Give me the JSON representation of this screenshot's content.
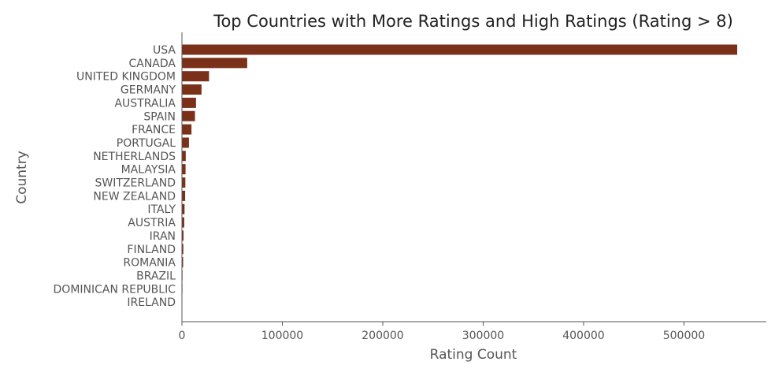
{
  "chart_data": {
    "type": "bar",
    "orientation": "horizontal",
    "title": "Top Countries with More Ratings and High Ratings (Rating > 8)",
    "xlabel": "Rating Count",
    "ylabel": "Country",
    "categories": [
      "USA",
      "CANADA",
      "UNITED KINGDOM",
      "GERMANY",
      "AUSTRALIA",
      "SPAIN",
      "FRANCE",
      "PORTUGAL",
      "NETHERLANDS",
      "MALAYSIA",
      "SWITZERLAND",
      "NEW ZEALAND",
      "ITALY",
      "AUSTRIA",
      "IRAN",
      "FINLAND",
      "ROMANIA",
      "BRAZIL",
      "DOMINICAN REPUBLIC",
      "IRELAND"
    ],
    "values": [
      553000,
      65000,
      27000,
      19500,
      14000,
      13000,
      9500,
      7000,
      3800,
      3600,
      3400,
      3200,
      2600,
      2300,
      1600,
      1400,
      1200,
      600,
      500,
      400
    ],
    "xlim": [
      0,
      582000
    ],
    "xticks": [
      0,
      100000,
      200000,
      300000,
      400000,
      500000
    ],
    "xtick_labels": [
      "0",
      "100000",
      "200000",
      "300000",
      "400000",
      "500000"
    ],
    "bar_color": "#7b3019",
    "grid": false,
    "legend": "none"
  }
}
